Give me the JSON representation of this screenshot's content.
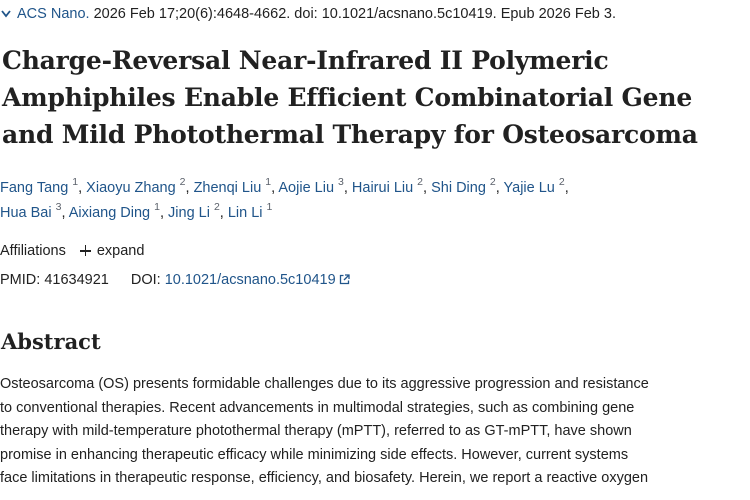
{
  "citation": {
    "chevron_icon": "chevron-down-icon",
    "journal": "ACS Nano.",
    "details": " 2026 Feb 17;20(6):4648-4662. doi: 10.1021/acsnano.5c10419. Epub 2026 Feb 3."
  },
  "article": {
    "title_lines": [
      "Charge-Reversal Near-Infrared II Polymeric",
      "Amphiphiles Enable Efficient Combinatorial Gene",
      "and Mild Photothermal Therapy for Osteosarcoma"
    ]
  },
  "authors": [
    {
      "name": "Fang Tang",
      "aff": "1"
    },
    {
      "name": "Xiaoyu Zhang",
      "aff": "2"
    },
    {
      "name": "Zhenqi Liu",
      "aff": "1"
    },
    {
      "name": "Aojie Liu",
      "aff": "3"
    },
    {
      "name": "Hairui Liu",
      "aff": "2"
    },
    {
      "name": "Shi Ding",
      "aff": "2"
    },
    {
      "name": "Yajie Lu",
      "aff": "2"
    },
    {
      "name": "Hua Bai",
      "aff": "3"
    },
    {
      "name": "Aixiang Ding",
      "aff": "1"
    },
    {
      "name": "Jing Li",
      "aff": "2"
    },
    {
      "name": "Lin Li",
      "aff": "1"
    }
  ],
  "affiliations": {
    "label": "Affiliations",
    "expand_icon": "plus-icon",
    "expand_label": "expand"
  },
  "identifiers": {
    "pmid_label": "PMID:",
    "pmid_value": "41634921",
    "doi_label": "DOI:",
    "doi_value": "10.1021/acsnano.5c10419",
    "doi_icon": "external-link-icon"
  },
  "abstract": {
    "heading": "Abstract",
    "lines": [
      "Osteosarcoma (OS) presents formidable challenges due to its aggressive progression and resistance",
      "to conventional therapies. Recent advancements in multimodal strategies, such as combining gene",
      "therapy with mild-temperature photothermal therapy (mPTT), referred to as GT-mPTT, have shown",
      "promise in enhancing therapeutic efficacy while minimizing side effects. However, current systems",
      "face limitations in therapeutic response, efficiency, and biosafety. Herein, we report a reactive oxygen"
    ]
  },
  "colors": {
    "link": "#20558a",
    "text": "#212121",
    "muted": "#5b616b"
  }
}
